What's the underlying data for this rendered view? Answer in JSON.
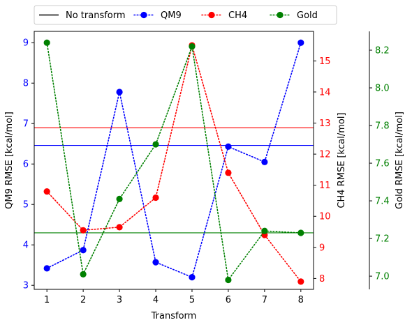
{
  "chart_data": {
    "type": "line",
    "categories": [
      1,
      2,
      3,
      4,
      5,
      6,
      7,
      8
    ],
    "xlabel": "Transform",
    "x_ticks": [
      "1",
      "2",
      "3",
      "4",
      "5",
      "6",
      "7",
      "8"
    ],
    "legend": {
      "placement": "top, outside, horizontal",
      "entries": [
        "No transform",
        "QM9",
        "CH4",
        "Gold"
      ]
    },
    "reference_label": "No transform",
    "axes": [
      {
        "id": "qm9",
        "side": "left",
        "label": "QM9 RMSE [kcal/mol]",
        "color": "#0000ff",
        "ylim": [
          2.9,
          9.28
        ],
        "ticks": [
          "3",
          "4",
          "5",
          "6",
          "7",
          "8",
          "9"
        ]
      },
      {
        "id": "ch4",
        "side": "right",
        "label": "CH4 RMSE [kcal/mol]",
        "color": "#ff0000",
        "ylim": [
          7.65,
          15.95
        ],
        "ticks": [
          "8",
          "9",
          "10",
          "11",
          "12",
          "13",
          "14",
          "15"
        ]
      },
      {
        "id": "gold",
        "side": "right-offset",
        "label": "Gold RMSE [kcal/mol]",
        "color": "#008000",
        "ylim": [
          6.93,
          8.3
        ],
        "ticks": [
          "7.0",
          "7.2",
          "7.4",
          "7.6",
          "7.8",
          "8.0",
          "8.2"
        ]
      }
    ],
    "series": [
      {
        "name": "QM9",
        "axis": "qm9",
        "color": "#0000ff",
        "style": "dotted",
        "values": [
          3.42,
          3.87,
          7.78,
          3.57,
          3.2,
          6.43,
          6.05,
          9.0
        ],
        "baseline": 6.46
      },
      {
        "name": "CH4",
        "axis": "ch4",
        "color": "#ff0000",
        "style": "dotted",
        "values": [
          10.8,
          9.55,
          9.65,
          10.6,
          15.5,
          11.4,
          9.4,
          7.9
        ],
        "baseline": 12.85
      },
      {
        "name": "Gold",
        "axis": "gold",
        "color": "#008000",
        "style": "dotted",
        "values": [
          8.24,
          7.01,
          7.41,
          7.7,
          8.22,
          6.98,
          7.24,
          7.23
        ],
        "baseline": 7.23
      }
    ]
  }
}
